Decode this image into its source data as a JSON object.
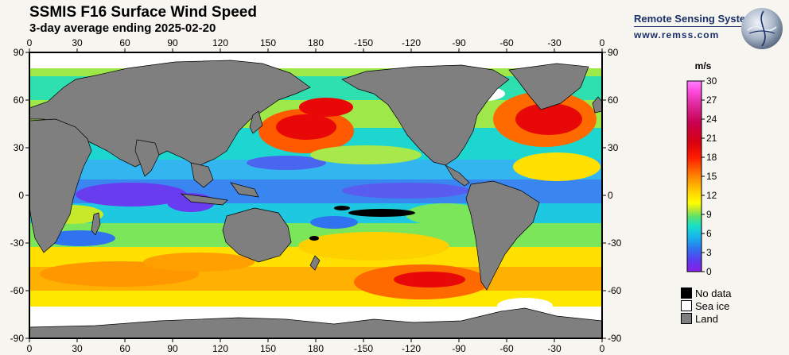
{
  "header": {
    "title": "SSMIS F16 Surface Wind Speed",
    "subtitle": "3-day average ending 2025-02-20"
  },
  "branding": {
    "organization": "Remote Sensing Systems",
    "url": "www.remss.com",
    "logo_icon": "globe-logo-icon"
  },
  "map": {
    "lon_ticks": [
      "0",
      "30",
      "60",
      "90",
      "120",
      "150",
      "180",
      "-150",
      "-120",
      "-90",
      "-60",
      "-30",
      "0"
    ],
    "lat_ticks": [
      "90",
      "60",
      "30",
      "0",
      "-30",
      "-60",
      "-90"
    ],
    "land_color": "#7f7f7f",
    "sea_ice_color": "#ffffff",
    "no_data_color": "#000000"
  },
  "colorbar": {
    "unit": "m/s",
    "ticks": [
      "30",
      "27",
      "24",
      "21",
      "18",
      "15",
      "12",
      "9",
      "6",
      "3",
      "0"
    ],
    "min": 0,
    "max": 30,
    "stops": [
      "#8a1fe6",
      "#5a3cf0",
      "#2f73f0",
      "#17b4ee",
      "#19e0c8",
      "#5ee26a",
      "#c6ea2a",
      "#ffff00",
      "#ffd000",
      "#ff9800",
      "#ff5a00",
      "#ff1a00",
      "#d80010",
      "#c80050",
      "#e02aa0",
      "#ff4ee0",
      "#ff80ff"
    ]
  },
  "legend": [
    {
      "label": "No data",
      "color": "#000000"
    },
    {
      "label": "Sea ice",
      "color": "#ffffff"
    },
    {
      "label": "Land",
      "color": "#7f7f7f"
    }
  ]
}
